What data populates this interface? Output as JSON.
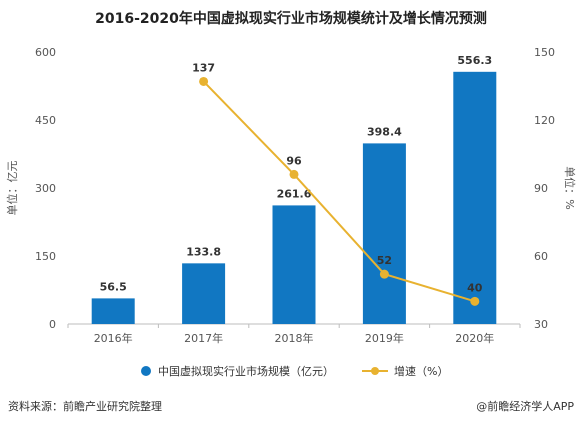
{
  "title": "2016-2020年中国虚拟现实行业市场规模统计及增长情况预测",
  "chart_data": {
    "type": "bar",
    "categories": [
      "2016年",
      "2017年",
      "2018年",
      "2019年",
      "2020年"
    ],
    "series": [
      {
        "name": "中国虚拟现实行业市场规模（亿元）",
        "type": "bar",
        "axis": "left",
        "values": [
          56.5,
          133.8,
          261.6,
          398.4,
          556.3
        ],
        "color": "#1177c2"
      },
      {
        "name": "增速（%）",
        "type": "line",
        "axis": "right",
        "values": [
          null,
          137,
          96,
          52,
          40
        ],
        "color": "#e8b230"
      }
    ],
    "ylabel": "单位：亿元",
    "y2label": "单位：%",
    "ylim": [
      0,
      600
    ],
    "y2lim": [
      30,
      150
    ],
    "yticks": [
      0,
      150,
      300,
      450,
      600
    ],
    "y2ticks": [
      30,
      60,
      90,
      120,
      150
    ],
    "grid": false,
    "legend_position": "bottom"
  },
  "footer": {
    "source": "资料来源：前瞻产业研究院整理",
    "brand": "@前瞻经济学人APP"
  }
}
